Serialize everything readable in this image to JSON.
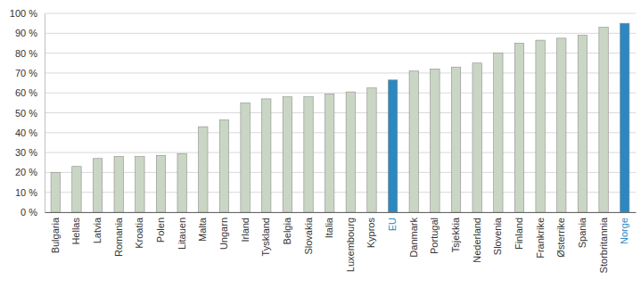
{
  "chart_data": {
    "type": "bar",
    "categories": [
      "Bulgaria",
      "Hellas",
      "Latvia",
      "Romania",
      "Kroatia",
      "Polen",
      "Litauen",
      "Malta",
      "Ungarn",
      "Irland",
      "Tyskland",
      "Belgia",
      "Slovakia",
      "Italia",
      "Luxembourg",
      "Kypros",
      "EU",
      "Danmark",
      "Portugal",
      "Tsjekkia",
      "Nederland",
      "Slovenia",
      "Finland",
      "Frankrike",
      "Østerrike",
      "Spania",
      "Storbritannia",
      "Norge"
    ],
    "values": [
      20,
      23,
      27,
      28,
      28,
      28.5,
      29.5,
      43,
      46.5,
      55,
      57,
      58,
      58,
      59.5,
      60.5,
      62.5,
      66.5,
      71,
      72,
      73,
      75,
      80,
      85,
      86.5,
      87.5,
      89,
      93,
      95
    ],
    "colors": [
      "#c9d6c4",
      "#c9d6c4",
      "#c9d6c4",
      "#c9d6c4",
      "#c9d6c4",
      "#c9d6c4",
      "#c9d6c4",
      "#c9d6c4",
      "#c9d6c4",
      "#c9d6c4",
      "#c9d6c4",
      "#c9d6c4",
      "#c9d6c4",
      "#c9d6c4",
      "#c9d6c4",
      "#c9d6c4",
      "#2b88c0",
      "#c9d6c4",
      "#c9d6c4",
      "#c9d6c4",
      "#c9d6c4",
      "#c9d6c4",
      "#c9d6c4",
      "#c9d6c4",
      "#c9d6c4",
      "#c9d6c4",
      "#c9d6c4",
      "#2b88c0"
    ],
    "ylim": [
      0,
      100
    ],
    "yticks": [
      {
        "value": 0,
        "label": "0 %"
      },
      {
        "value": 10,
        "label": "10 %"
      },
      {
        "value": 20,
        "label": "20 %"
      },
      {
        "value": 30,
        "label": "30 %"
      },
      {
        "value": 40,
        "label": "40 %"
      },
      {
        "value": 50,
        "label": "50 %"
      },
      {
        "value": 60,
        "label": "60 %"
      },
      {
        "value": 70,
        "label": "70 %"
      },
      {
        "value": 80,
        "label": "80 %"
      },
      {
        "value": 90,
        "label": "90 %"
      },
      {
        "value": 100,
        "label": "100 %"
      }
    ],
    "grid": true
  }
}
